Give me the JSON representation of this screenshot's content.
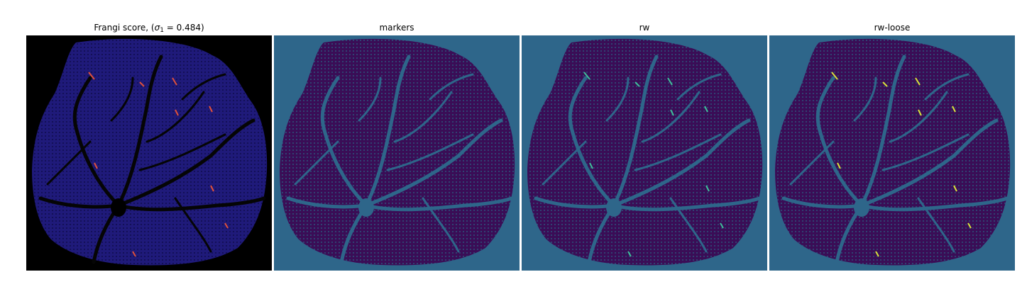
{
  "figure": {
    "panels": [
      {
        "id": "frangi",
        "title": "Frangi score, (",
        "sigma_symbol": "σ",
        "sigma_subscript": "1",
        "sigma_suffix": " = 0.484)",
        "background": "#000000",
        "mesh_color": "#1f1a7a",
        "vessel_color": "#050505",
        "highlight_color": "#e0503a"
      },
      {
        "id": "markers",
        "title": "markers",
        "background": "#2e668a",
        "mesh_color": "#3a0d56",
        "vessel_color": "#2e668a"
      },
      {
        "id": "rw",
        "title": "rw",
        "background": "#2e668a",
        "mesh_color": "#3a0d56",
        "vessel_color": "#2e668a",
        "highlight_color": "#3fbf9a"
      },
      {
        "id": "rw-loose",
        "title": "rw-loose",
        "background": "#2e668a",
        "mesh_color": "#3a0d56",
        "vessel_color": "#2e668a",
        "highlight_color": "#d8e23a"
      }
    ]
  }
}
